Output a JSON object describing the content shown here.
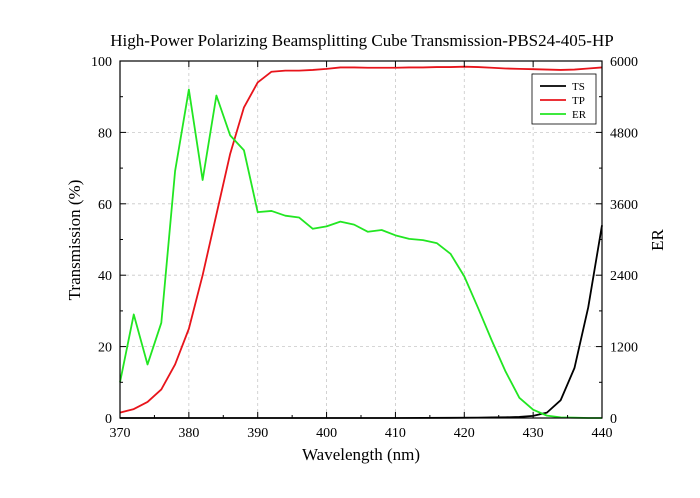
{
  "chart_data": {
    "type": "line",
    "title": "High-Power Polarizing Beamsplitting Cube Transmission-PBS24-405-HP",
    "xlabel": "Wavelength (nm)",
    "ylabel": "Transmission (%)",
    "y2label": "ER",
    "xlim": [
      370,
      440
    ],
    "ylim": [
      0,
      100
    ],
    "y2lim": [
      0,
      6000
    ],
    "xticks": [
      "370",
      "380",
      "390",
      "400",
      "410",
      "420",
      "430",
      "440"
    ],
    "yticks": [
      "0",
      "20",
      "40",
      "60",
      "80",
      "100"
    ],
    "y2ticks": [
      "0",
      "1200",
      "2400",
      "3600",
      "4800",
      "6000"
    ],
    "grid": true,
    "legend_position": "top-right",
    "series": [
      {
        "name": "TS",
        "axis": "left",
        "color": "#000000",
        "x": [
          370,
          380,
          390,
          400,
          410,
          418,
          422,
          424,
          426,
          428,
          430,
          432,
          434,
          436,
          438,
          440
        ],
        "y": [
          0,
          0,
          0,
          0,
          0,
          0.05,
          0.1,
          0.15,
          0.2,
          0.3,
          0.6,
          1.5,
          5,
          14,
          31,
          54
        ]
      },
      {
        "name": "TP",
        "axis": "left",
        "color": "#e8141b",
        "x": [
          370,
          372,
          374,
          376,
          378,
          380,
          382,
          384,
          386,
          388,
          390,
          392,
          394,
          396,
          398,
          400,
          402,
          404,
          406,
          408,
          410,
          412,
          414,
          416,
          418,
          420,
          422,
          424,
          426,
          428,
          430,
          432,
          434,
          436,
          438,
          440
        ],
        "y": [
          1.5,
          2.5,
          4.5,
          8,
          15,
          25,
          40,
          57,
          74,
          87,
          94,
          97,
          97.3,
          97.3,
          97.5,
          97.8,
          98.2,
          98.2,
          98.1,
          98.1,
          98.1,
          98.2,
          98.2,
          98.3,
          98.3,
          98.4,
          98.3,
          98.1,
          97.9,
          97.8,
          97.7,
          97.6,
          97.5,
          97.6,
          97.9,
          98.2
        ]
      },
      {
        "name": "ER",
        "axis": "right",
        "color": "#22e622",
        "x": [
          370,
          372,
          374,
          376,
          378,
          380,
          382,
          384,
          386,
          388,
          390,
          392,
          394,
          396,
          398,
          400,
          402,
          404,
          406,
          408,
          410,
          412,
          414,
          416,
          418,
          420,
          422,
          424,
          426,
          428,
          430,
          432,
          434,
          436,
          438,
          440
        ],
        "y": [
          600,
          1740,
          900,
          1600,
          4150,
          5520,
          4000,
          5420,
          4750,
          4500,
          3460,
          3480,
          3400,
          3370,
          3180,
          3220,
          3300,
          3250,
          3130,
          3160,
          3070,
          3010,
          2990,
          2940,
          2760,
          2380,
          1850,
          1300,
          780,
          340,
          140,
          40,
          10,
          5,
          0,
          0
        ]
      }
    ]
  }
}
